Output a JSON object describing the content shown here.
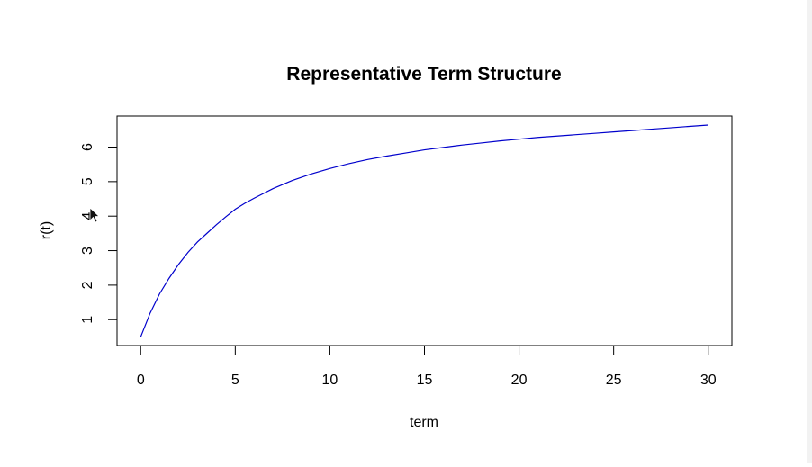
{
  "chart_data": {
    "type": "line",
    "title": "Representative Term Structure",
    "xlabel": "term",
    "ylabel": "r(t)",
    "xlim": [
      -1.25,
      31.25
    ],
    "ylim": [
      0.25,
      6.9
    ],
    "x_ticks": [
      0,
      5,
      10,
      15,
      20,
      25,
      30
    ],
    "y_ticks": [
      1,
      2,
      3,
      4,
      5,
      6
    ],
    "grid": false,
    "series": [
      {
        "color": "#0000cc",
        "x": [
          0,
          0.5,
          1,
          1.5,
          2,
          2.5,
          3,
          3.5,
          4,
          4.5,
          5,
          5.5,
          6,
          7,
          8,
          9,
          10,
          11,
          12,
          13,
          14,
          15,
          16,
          17,
          18,
          19,
          20,
          21,
          22,
          23,
          24,
          25,
          26,
          27,
          28,
          29,
          30
        ],
        "y": [
          0.5,
          1.19,
          1.75,
          2.2,
          2.6,
          2.95,
          3.25,
          3.5,
          3.75,
          3.98,
          4.2,
          4.37,
          4.52,
          4.8,
          5.03,
          5.22,
          5.38,
          5.52,
          5.64,
          5.74,
          5.83,
          5.92,
          5.99,
          6.06,
          6.12,
          6.18,
          6.23,
          6.28,
          6.32,
          6.36,
          6.4,
          6.44,
          6.48,
          6.52,
          6.56,
          6.6,
          6.64
        ]
      }
    ]
  }
}
